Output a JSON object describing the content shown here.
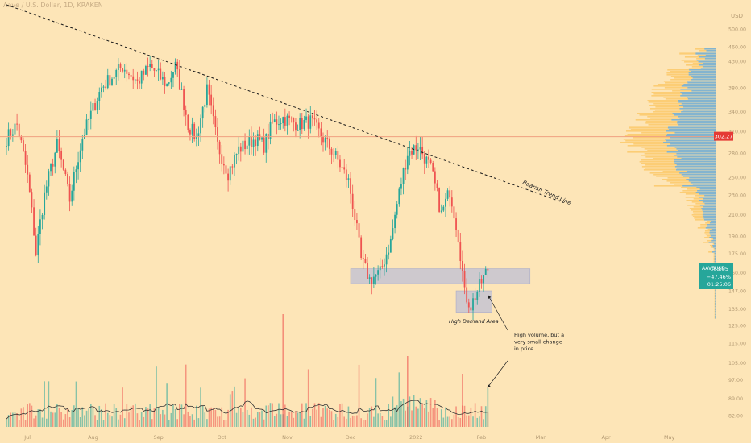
{
  "header": {
    "title": "Aave / U.S. Dollar, 1D, KRAKEN",
    "currency": "USD"
  },
  "annotations": {
    "trend_line_label": "Bearish Trend Line",
    "demand_label": "High Demand Area",
    "note": "High volume, but a very small change in price."
  },
  "price_tag": {
    "symbol": "AAVEUSD",
    "price": "163.55",
    "change": "−47.46%",
    "countdown": "01:25:06",
    "line_price_label": "302.27"
  },
  "colors": {
    "background": "#fde5b7",
    "up": "#26a69a",
    "down": "#ef5350",
    "hline": "#f0a080",
    "zone": "#bdbfd6",
    "vp_up": "#64aee6",
    "vp_down": "#fcc96a",
    "price_tag": "#26a69a",
    "line_price_tag": "#e53935"
  },
  "chart_data": {
    "type": "candlestick",
    "title": "Aave / U.S. Dollar, 1D, KRAKEN",
    "y_axis": {
      "scale": "log",
      "ticks": [
        "500.00",
        "460.00",
        "430.00",
        "380.00",
        "340.00",
        "310.00",
        "280.00",
        "250.00",
        "230.00",
        "210.00",
        "190.00",
        "175.00",
        "160.00",
        "147.00",
        "135.00",
        "125.00",
        "115.00",
        "105.00",
        "97.00",
        "89.00",
        "82.00"
      ],
      "tick_values": [
        500,
        460,
        430,
        380,
        340,
        310,
        280,
        250,
        230,
        210,
        190,
        175,
        160,
        147,
        135,
        125,
        115,
        105,
        97,
        89,
        82
      ]
    },
    "x_axis": {
      "ticks": [
        "Jul",
        "Aug",
        "Sep",
        "Oct",
        "Nov",
        "Dec",
        "2022",
        "Feb",
        "Mar",
        "Apr",
        "May"
      ],
      "tick_days": [
        10,
        41,
        72,
        102,
        133,
        163,
        194,
        225,
        253,
        284,
        314
      ]
    },
    "horizontal_line": 302.27,
    "trend_line": {
      "from": {
        "day": 0,
        "price": 560
      },
      "to": {
        "day": 264,
        "price": 222
      }
    },
    "zones": [
      {
        "name": "resistance-support",
        "day_from": 163,
        "day_to": 248,
        "price_from": 152,
        "price_to": 163
      },
      {
        "name": "high-demand",
        "day_from": 213,
        "day_to": 230,
        "price_from": 133,
        "price_to": 147
      }
    ],
    "ohlc_key_points": [
      [
        0,
        300
      ],
      [
        5,
        320
      ],
      [
        10,
        250
      ],
      [
        14,
        175
      ],
      [
        18,
        230
      ],
      [
        24,
        290
      ],
      [
        30,
        225
      ],
      [
        36,
        300
      ],
      [
        45,
        380
      ],
      [
        55,
        420
      ],
      [
        62,
        390
      ],
      [
        68,
        420
      ],
      [
        76,
        385
      ],
      [
        80,
        420
      ],
      [
        86,
        320
      ],
      [
        90,
        300
      ],
      [
        95,
        375
      ],
      [
        100,
        290
      ],
      [
        105,
        255
      ],
      [
        110,
        285
      ],
      [
        118,
        300
      ],
      [
        122,
        290
      ],
      [
        126,
        322
      ],
      [
        131,
        330
      ],
      [
        138,
        320
      ],
      [
        144,
        325
      ],
      [
        150,
        300
      ],
      [
        156,
        275
      ],
      [
        162,
        245
      ],
      [
        168,
        170
      ],
      [
        172,
        155
      ],
      [
        177,
        160
      ],
      [
        182,
        185
      ],
      [
        190,
        280
      ],
      [
        195,
        290
      ],
      [
        201,
        260
      ],
      [
        206,
        210
      ],
      [
        210,
        235
      ],
      [
        214,
        190
      ],
      [
        217,
        145
      ],
      [
        220,
        137
      ],
      [
        224,
        150
      ],
      [
        228,
        163
      ]
    ],
    "volume_profile": "stacked horizontal histogram on right side, up volume (blue) and down volume (yellow)"
  }
}
